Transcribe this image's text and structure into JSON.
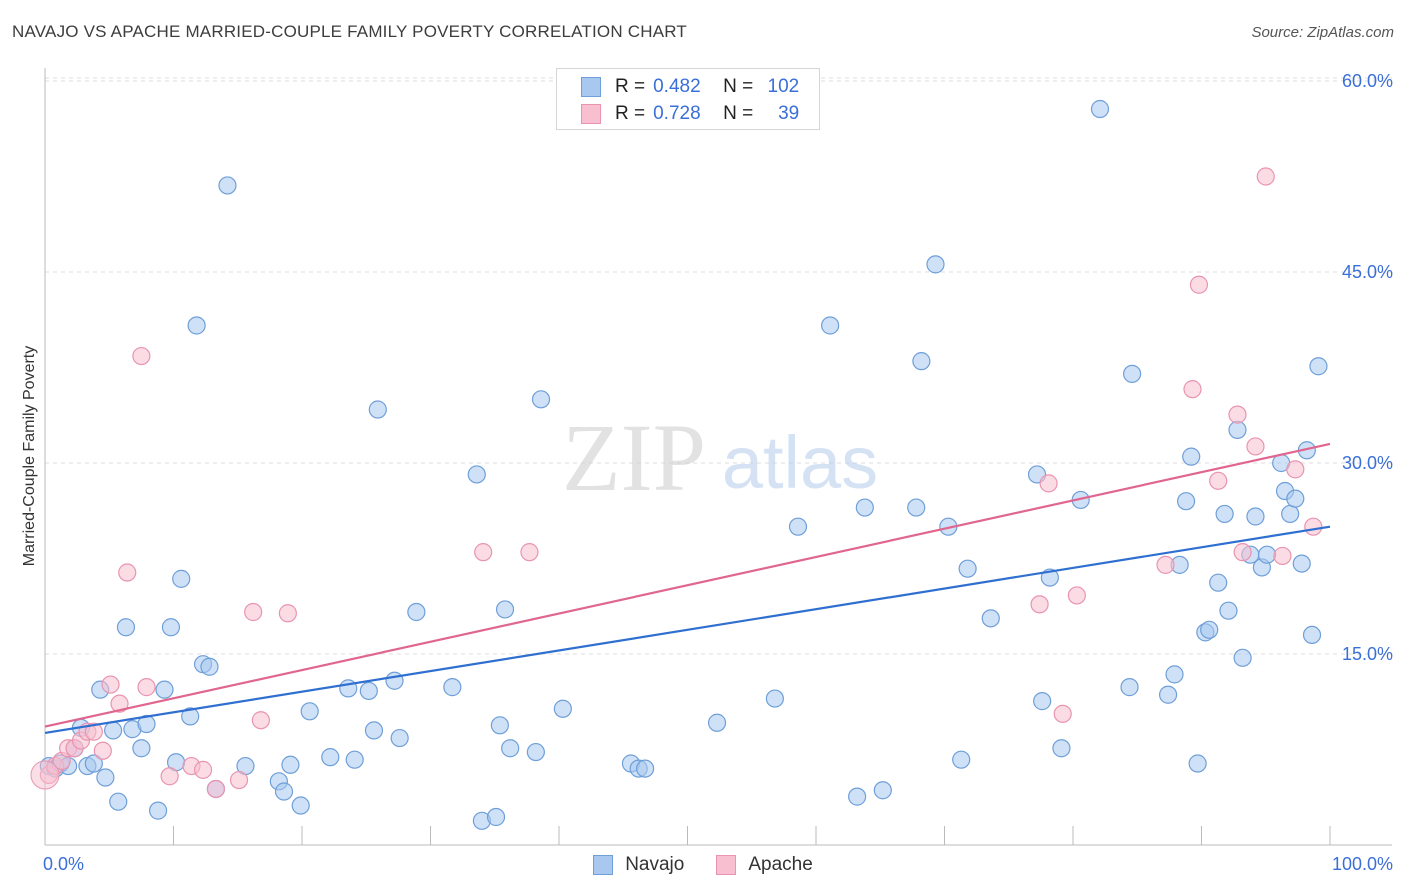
{
  "header": {
    "title": "NAVAJO VS APACHE MARRIED-COUPLE FAMILY POVERTY CORRELATION CHART",
    "source": "Source: ZipAtlas.com"
  },
  "colors": {
    "navajo_fill": "#a8c8f0",
    "navajo_stroke": "#6f9fd8",
    "navajo_line": "#2f6fd0",
    "apache_fill": "#f7bfd0",
    "apache_stroke": "#e994b0",
    "apache_line": "#e06690",
    "axis_label": "#3a6fd8",
    "grid": "#dddddd"
  },
  "legend": {
    "rows": [
      {
        "r_label": "R =",
        "r_value": "0.482",
        "n_label": "N =",
        "n_value": "102"
      },
      {
        "r_label": "R =",
        "r_value": "0.728",
        "n_label": "N =",
        "n_value": "39"
      }
    ],
    "bottom": [
      "Navajo",
      "Apache"
    ]
  },
  "watermark": {
    "zip": "ZIP",
    "atlas": "atlas"
  },
  "chart_data": {
    "type": "scatter",
    "title": "NAVAJO VS APACHE MARRIED-COUPLE FAMILY POVERTY CORRELATION CHART",
    "xlabel": "",
    "ylabel": "Married-Couple Family Poverty",
    "xlim": [
      0,
      100
    ],
    "ylim": [
      0,
      62
    ],
    "x_tick_labels": [
      "0.0%",
      "100.0%"
    ],
    "y_ticks": [
      15,
      30,
      45,
      60
    ],
    "y_tick_labels": [
      "15.0%",
      "30.0%",
      "45.0%",
      "60.0%"
    ],
    "grid": true,
    "series": [
      {
        "name": "Navajo",
        "R": 0.482,
        "N": 102,
        "trend": {
          "x": [
            0,
            100
          ],
          "y": [
            8.8,
            25.0
          ]
        },
        "points": [
          [
            0.3,
            6.2
          ],
          [
            0.8,
            6.0
          ],
          [
            1.2,
            6.4
          ],
          [
            1.8,
            6.2
          ],
          [
            2.3,
            7.6
          ],
          [
            2.8,
            9.2
          ],
          [
            3.3,
            6.2
          ],
          [
            3.8,
            6.4
          ],
          [
            4.3,
            12.2
          ],
          [
            4.7,
            5.3
          ],
          [
            5.3,
            9.0
          ],
          [
            5.7,
            3.4
          ],
          [
            6.3,
            17.1
          ],
          [
            6.8,
            9.1
          ],
          [
            7.5,
            7.6
          ],
          [
            7.9,
            9.5
          ],
          [
            8.8,
            2.7
          ],
          [
            9.3,
            12.2
          ],
          [
            9.8,
            17.1
          ],
          [
            10.2,
            6.5
          ],
          [
            10.6,
            20.9
          ],
          [
            11.3,
            10.1
          ],
          [
            11.8,
            40.8
          ],
          [
            12.3,
            14.2
          ],
          [
            12.8,
            14.0
          ],
          [
            13.3,
            4.4
          ],
          [
            14.2,
            51.8
          ],
          [
            15.6,
            6.2
          ],
          [
            18.2,
            5.0
          ],
          [
            18.6,
            4.2
          ],
          [
            19.1,
            6.3
          ],
          [
            19.9,
            3.1
          ],
          [
            20.6,
            10.5
          ],
          [
            22.2,
            6.9
          ],
          [
            23.6,
            12.3
          ],
          [
            24.1,
            6.7
          ],
          [
            25.2,
            12.1
          ],
          [
            25.6,
            9.0
          ],
          [
            25.9,
            34.2
          ],
          [
            27.2,
            12.9
          ],
          [
            27.6,
            8.4
          ],
          [
            28.9,
            18.3
          ],
          [
            31.7,
            12.4
          ],
          [
            33.6,
            29.1
          ],
          [
            34.0,
            1.9
          ],
          [
            35.1,
            2.2
          ],
          [
            35.4,
            9.4
          ],
          [
            35.8,
            18.5
          ],
          [
            36.2,
            7.6
          ],
          [
            38.2,
            7.3
          ],
          [
            38.6,
            35.0
          ],
          [
            40.3,
            10.7
          ],
          [
            45.6,
            6.4
          ],
          [
            46.2,
            6.0
          ],
          [
            46.7,
            6.0
          ],
          [
            52.3,
            9.6
          ],
          [
            56.8,
            11.5
          ],
          [
            58.6,
            25.0
          ],
          [
            61.1,
            40.8
          ],
          [
            63.2,
            3.8
          ],
          [
            63.8,
            26.5
          ],
          [
            65.2,
            4.3
          ],
          [
            67.8,
            26.5
          ],
          [
            68.2,
            38.0
          ],
          [
            69.3,
            45.6
          ],
          [
            70.3,
            25.0
          ],
          [
            71.3,
            6.7
          ],
          [
            71.8,
            21.7
          ],
          [
            73.6,
            17.8
          ],
          [
            77.2,
            29.1
          ],
          [
            77.6,
            11.3
          ],
          [
            78.2,
            21.0
          ],
          [
            79.1,
            7.6
          ],
          [
            80.6,
            27.1
          ],
          [
            82.1,
            57.8
          ],
          [
            84.4,
            12.4
          ],
          [
            84.6,
            37.0
          ],
          [
            87.4,
            11.8
          ],
          [
            87.9,
            13.4
          ],
          [
            88.3,
            22.0
          ],
          [
            88.8,
            27.0
          ],
          [
            89.2,
            30.5
          ],
          [
            89.7,
            6.4
          ],
          [
            90.3,
            16.7
          ],
          [
            90.6,
            16.9
          ],
          [
            91.3,
            20.6
          ],
          [
            91.8,
            26.0
          ],
          [
            92.1,
            18.4
          ],
          [
            92.8,
            32.6
          ],
          [
            93.2,
            14.7
          ],
          [
            93.8,
            22.8
          ],
          [
            94.2,
            25.8
          ],
          [
            94.7,
            21.8
          ],
          [
            95.1,
            22.8
          ],
          [
            96.2,
            30.0
          ],
          [
            96.5,
            27.8
          ],
          [
            96.9,
            26.0
          ],
          [
            97.3,
            27.2
          ],
          [
            97.8,
            22.1
          ],
          [
            98.2,
            31.0
          ],
          [
            98.6,
            16.5
          ],
          [
            99.1,
            37.6
          ]
        ]
      },
      {
        "name": "Apache",
        "R": 0.728,
        "N": 39,
        "trend": {
          "x": [
            0,
            100
          ],
          "y": [
            9.3,
            31.5
          ]
        },
        "points": [
          [
            0.3,
            5.5
          ],
          [
            0.8,
            6.2
          ],
          [
            1.3,
            6.6
          ],
          [
            1.8,
            7.6
          ],
          [
            2.3,
            7.6
          ],
          [
            2.8,
            8.2
          ],
          [
            3.3,
            8.9
          ],
          [
            3.8,
            8.9
          ],
          [
            4.5,
            7.4
          ],
          [
            5.1,
            12.6
          ],
          [
            5.8,
            11.1
          ],
          [
            6.4,
            21.4
          ],
          [
            7.5,
            38.4
          ],
          [
            7.9,
            12.4
          ],
          [
            9.7,
            5.4
          ],
          [
            11.4,
            6.2
          ],
          [
            12.3,
            5.9
          ],
          [
            13.3,
            4.4
          ],
          [
            15.1,
            5.1
          ],
          [
            16.2,
            18.3
          ],
          [
            16.8,
            9.8
          ],
          [
            18.9,
            18.2
          ],
          [
            34.1,
            23.0
          ],
          [
            37.7,
            23.0
          ],
          [
            79.2,
            10.3
          ],
          [
            80.3,
            19.6
          ],
          [
            78.1,
            28.4
          ],
          [
            77.4,
            18.9
          ],
          [
            87.2,
            22.0
          ],
          [
            89.3,
            35.8
          ],
          [
            89.8,
            44.0
          ],
          [
            91.3,
            28.6
          ],
          [
            92.8,
            33.8
          ],
          [
            93.2,
            23.0
          ],
          [
            94.2,
            31.3
          ],
          [
            95.0,
            52.5
          ],
          [
            96.3,
            22.7
          ],
          [
            97.3,
            29.5
          ],
          [
            98.7,
            25.0
          ]
        ]
      }
    ]
  }
}
